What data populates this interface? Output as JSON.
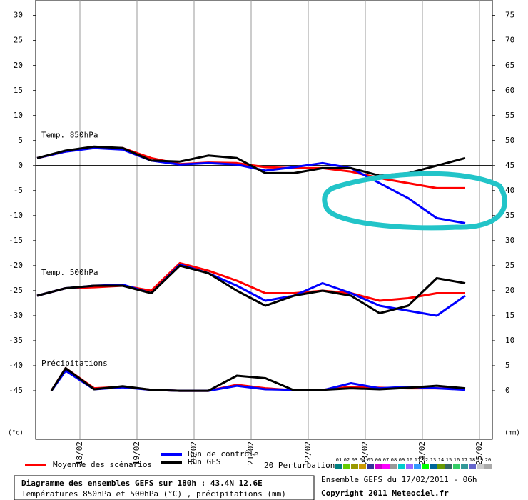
{
  "chart_data": {
    "type": "line",
    "xlim": [
      5.4,
      197.4
    ],
    "xticks": [
      {
        "value": 24,
        "label": "18/02"
      },
      {
        "value": 48,
        "label": "19/02"
      },
      {
        "value": 72,
        "label": "20/02"
      },
      {
        "value": 96,
        "label": "21/02"
      },
      {
        "value": 120,
        "label": "22/02"
      },
      {
        "value": 144,
        "label": "23/02"
      },
      {
        "value": 168,
        "label": "24/02"
      },
      {
        "value": 192,
        "label": "25/02"
      }
    ],
    "ylim": [
      -54.7,
      33.1
    ],
    "yticks": [
      30,
      25,
      20,
      15,
      10,
      5,
      0,
      -5,
      -10,
      -15,
      -20,
      -25,
      -30,
      -35,
      -40,
      -45
    ],
    "y2lim": [
      -9.7,
      78.1
    ],
    "y2ticks": [
      75,
      70,
      65,
      60,
      55,
      50,
      45,
      40,
      35,
      30,
      25,
      20,
      15,
      10,
      5,
      0
    ],
    "ylabel": "(°c)",
    "y2label": "(mm)",
    "legend": [
      {
        "name": "Moyenne des scénarios",
        "color": "#ff0000"
      },
      {
        "name": "Run de contrôle",
        "color": "#0000ff"
      },
      {
        "name": "Run GFS",
        "color": "#000000"
      }
    ],
    "groups": [
      {
        "label": "Temp. 850hPa",
        "axis": "y",
        "x": [
          6,
          18,
          30,
          42,
          54,
          66,
          78,
          90,
          102,
          114,
          126,
          138,
          150,
          162,
          174,
          186
        ],
        "lines": [
          [
            1.5,
            2.8,
            3.6,
            3.5,
            1.5,
            0.3,
            0.6,
            0.5,
            -0.3,
            -0.5,
            -0.5,
            -1.2,
            -2.5,
            -3.5,
            -4.5,
            -4.5
          ],
          [
            1.5,
            2.8,
            3.5,
            3.2,
            1.0,
            0.2,
            0.5,
            0.2,
            -1.0,
            -0.3,
            0.5,
            -0.5,
            -3.5,
            -6.5,
            -10.5,
            -11.5
          ],
          [
            1.5,
            3.0,
            3.8,
            3.5,
            1.0,
            0.8,
            2.0,
            1.5,
            -1.5,
            -1.5,
            -0.5,
            -0.5,
            -2.0,
            -1.5,
            0,
            1.5
          ]
        ]
      },
      {
        "label": "Temp. 500hPa",
        "axis": "y",
        "x": [
          6,
          18,
          30,
          42,
          54,
          66,
          78,
          90,
          102,
          114,
          126,
          138,
          150,
          162,
          174,
          186
        ],
        "lines": [
          [
            -26,
            -24.5,
            -24.3,
            -24,
            -25,
            -19.5,
            -21,
            -23,
            -25.5,
            -25.5,
            -25,
            -25.5,
            -27,
            -26.5,
            -25.5,
            -25.5
          ],
          [
            -26,
            -24.5,
            -24,
            -23.8,
            -25.5,
            -19.8,
            -21.5,
            -24,
            -27,
            -26,
            -23.5,
            -25.5,
            -28,
            -29,
            -30,
            -26
          ],
          [
            -26,
            -24.5,
            -24,
            -24,
            -25.5,
            -20,
            -21.5,
            -25,
            -28,
            -26,
            -25,
            -26,
            -29.5,
            -28,
            -22.5,
            -23.5
          ]
        ]
      },
      {
        "label": "Précipitations",
        "axis": "y2",
        "x": [
          12,
          18,
          30,
          42,
          54,
          66,
          78,
          90,
          102,
          114,
          126,
          138,
          150,
          162,
          174,
          186
        ],
        "lines": [
          [
            0,
            4.5,
            0.5,
            0.8,
            0.2,
            0,
            0,
            1.2,
            0.5,
            0.1,
            0.2,
            0.8,
            0.6,
            0.5,
            0.5,
            0.4
          ],
          [
            0,
            4,
            0.3,
            0.7,
            0.2,
            0,
            0,
            1,
            0.3,
            0.2,
            0.1,
            1.5,
            0.5,
            0.8,
            0.5,
            0.2
          ],
          [
            0,
            4.5,
            0.3,
            0.9,
            0.2,
            0,
            0,
            3,
            2.5,
            0.1,
            0.2,
            0.5,
            0.3,
            0.6,
            1,
            0.5
          ]
        ]
      }
    ],
    "perturbations": {
      "label": "20 Perturbations",
      "members": [
        {
          "name": "01",
          "color": "#008080"
        },
        {
          "name": "02",
          "color": "#66cc00"
        },
        {
          "name": "03",
          "color": "#999900"
        },
        {
          "name": "04",
          "color": "#cc9900"
        },
        {
          "name": "05",
          "color": "#333399"
        },
        {
          "name": "06",
          "color": "#cc00cc"
        },
        {
          "name": "07",
          "color": "#ff00ff"
        },
        {
          "name": "08",
          "color": "#999999"
        },
        {
          "name": "09",
          "color": "#00cccc"
        },
        {
          "name": "10",
          "color": "#9966ff"
        },
        {
          "name": "11",
          "color": "#3399ff"
        },
        {
          "name": "12",
          "color": "#00ff00"
        },
        {
          "name": "13",
          "color": "#006699"
        },
        {
          "name": "14",
          "color": "#669900"
        },
        {
          "name": "15",
          "color": "#336666"
        },
        {
          "name": "16",
          "color": "#33cc66"
        },
        {
          "name": "17",
          "color": "#339999"
        },
        {
          "name": "18",
          "color": "#6666cc"
        },
        {
          "name": "19",
          "color": "#cccccc"
        },
        {
          "name": "20",
          "color": "#aaaaaa"
        }
      ]
    }
  },
  "footer": {
    "title": "Diagramme des ensembles GEFS sur 180h : 43.4N 12.6E",
    "subtitle": "Températures 850hPa et 500hPa (°C) , précipitations (mm)",
    "run": "Ensemble GEFS du 17/02/2011 - 06h",
    "copyright": "Copyright 2011 Meteociel.fr"
  }
}
